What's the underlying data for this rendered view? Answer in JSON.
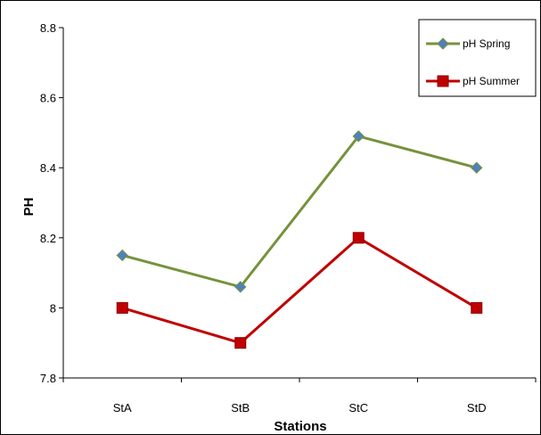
{
  "chart_data": {
    "type": "line",
    "title": "",
    "xlabel": "Stations",
    "ylabel": "PH",
    "categories": [
      "StA",
      "StB",
      "StC",
      "StD"
    ],
    "ylim": [
      7.8,
      8.8
    ],
    "yticks": [
      7.8,
      8,
      8.2,
      8.4,
      8.6,
      8.8
    ],
    "ytick_labels": [
      "7.8",
      "8",
      "8.2",
      "8.4",
      "8.6",
      "8.8"
    ],
    "grid": false,
    "legend_position": "top-right",
    "series": [
      {
        "name": "pH Spring",
        "values": [
          8.15,
          8.06,
          8.49,
          8.4
        ],
        "color": "#76923C",
        "marker": "diamond",
        "marker_color": "#4F81BD"
      },
      {
        "name": "pH Summer",
        "values": [
          8.0,
          7.9,
          8.2,
          8.0
        ],
        "color": "#C00000",
        "marker": "square",
        "marker_color": "#C00000"
      }
    ]
  }
}
